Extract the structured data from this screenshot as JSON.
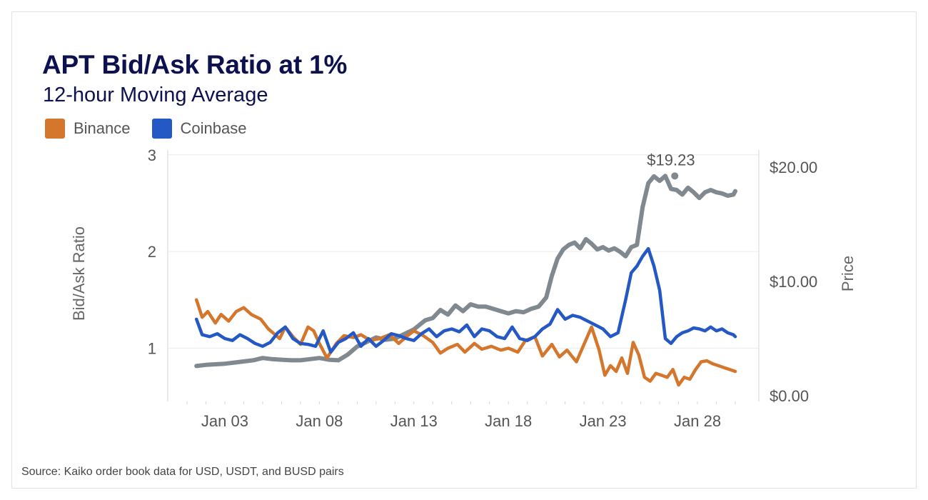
{
  "chart_data": {
    "type": "line",
    "title": "APT Bid/Ask Ratio at 1%",
    "subtitle": "12-hour Moving Average",
    "ylabel": "Bid/Ask Ratio",
    "y2label": "Price",
    "source": "Source: Kaiko order book data for USD, USDT, and BUSD pairs",
    "x_tick_labels": [
      "Jan 03",
      "Jan 08",
      "Jan 13",
      "Jan 18",
      "Jan 23",
      "Jan 28"
    ],
    "x_tick_days": [
      3,
      8,
      13,
      18,
      23,
      28
    ],
    "x_range_days": [
      1.0,
      30.0
    ],
    "ylim": [
      0.45,
      3.05
    ],
    "y_ticks": [
      1,
      2,
      3
    ],
    "y2lim": [
      -0.5,
      21.5
    ],
    "y2_ticks": [
      "$0.00",
      "$10.00",
      "$20.00"
    ],
    "y2_tick_values": [
      0,
      10,
      20
    ],
    "grid": true,
    "legend_position": "top-left",
    "annotation": {
      "text": "$19.23",
      "day": 26.6,
      "value": 19.23
    },
    "series": [
      {
        "name": "Binance",
        "axis": "left",
        "color": "#d4762c",
        "x": [
          1.5,
          1.8,
          2.1,
          2.5,
          2.8,
          3.2,
          3.6,
          4.0,
          4.4,
          4.9,
          5.3,
          5.6,
          5.9,
          6.2,
          6.6,
          7.0,
          7.4,
          7.7,
          8.0,
          8.4,
          8.9,
          9.3,
          9.8,
          10.2,
          10.7,
          11.2,
          11.7,
          12.2,
          12.6,
          13.0,
          13.5,
          14.0,
          14.4,
          14.8,
          15.3,
          15.7,
          16.2,
          16.6,
          17.1,
          17.6,
          18.0,
          18.5,
          18.9,
          19.4,
          19.8,
          20.3,
          20.7,
          21.1,
          21.6,
          22.0,
          22.4,
          22.8,
          23.1,
          23.4,
          23.7,
          24.0,
          24.3,
          24.6,
          24.9,
          25.2,
          25.5,
          25.8,
          26.1,
          26.4,
          26.7,
          27.0,
          27.3,
          27.6,
          27.9,
          28.2,
          28.5,
          28.8,
          29.1,
          29.4,
          29.7,
          30.0
        ],
        "y": [
          1.5,
          1.32,
          1.38,
          1.26,
          1.35,
          1.28,
          1.38,
          1.42,
          1.35,
          1.3,
          1.2,
          1.15,
          1.1,
          1.22,
          1.12,
          1.04,
          1.22,
          1.18,
          1.05,
          0.9,
          1.05,
          1.13,
          1.11,
          1.14,
          1.08,
          1.1,
          1.14,
          1.05,
          1.12,
          1.18,
          1.13,
          1.06,
          0.95,
          1.0,
          1.04,
          0.96,
          1.05,
          0.99,
          1.02,
          0.98,
          1.0,
          0.96,
          1.08,
          1.12,
          0.92,
          1.04,
          0.91,
          0.98,
          0.86,
          1.04,
          1.22,
          0.98,
          0.72,
          0.82,
          0.76,
          0.9,
          0.74,
          1.06,
          0.93,
          0.7,
          0.66,
          0.74,
          0.72,
          0.7,
          0.78,
          0.62,
          0.7,
          0.68,
          0.78,
          0.86,
          0.87,
          0.84,
          0.82,
          0.8,
          0.78,
          0.76
        ]
      },
      {
        "name": "Coinbase",
        "axis": "left",
        "color": "#2458c4",
        "x": [
          1.5,
          1.8,
          2.2,
          2.6,
          3.0,
          3.4,
          3.8,
          4.2,
          4.6,
          5.0,
          5.4,
          5.8,
          6.2,
          6.6,
          7.0,
          7.4,
          7.8,
          8.2,
          8.6,
          9.0,
          9.4,
          9.8,
          10.2,
          10.6,
          11.0,
          11.4,
          11.8,
          12.2,
          12.6,
          13.0,
          13.4,
          13.8,
          14.2,
          14.6,
          15.0,
          15.4,
          15.8,
          16.2,
          16.6,
          17.0,
          17.4,
          17.8,
          18.2,
          18.6,
          19.0,
          19.4,
          19.8,
          20.2,
          20.6,
          21.0,
          21.4,
          21.8,
          22.2,
          22.6,
          23.0,
          23.4,
          23.8,
          24.2,
          24.5,
          24.8,
          25.1,
          25.4,
          25.7,
          26.0,
          26.3,
          26.6,
          26.9,
          27.2,
          27.5,
          27.8,
          28.1,
          28.4,
          28.7,
          29.0,
          29.3,
          29.6,
          29.9,
          30.0
        ],
        "y": [
          1.3,
          1.14,
          1.12,
          1.15,
          1.1,
          1.08,
          1.14,
          1.1,
          1.05,
          1.02,
          1.06,
          1.16,
          1.22,
          1.1,
          1.05,
          1.04,
          1.02,
          1.18,
          0.96,
          1.06,
          1.1,
          1.16,
          1.02,
          1.1,
          1.02,
          1.08,
          1.15,
          1.13,
          1.1,
          1.08,
          1.15,
          1.2,
          1.12,
          1.18,
          1.2,
          1.17,
          1.24,
          1.12,
          1.2,
          1.18,
          1.12,
          1.1,
          1.22,
          1.1,
          1.08,
          1.12,
          1.2,
          1.25,
          1.4,
          1.3,
          1.34,
          1.32,
          1.28,
          1.24,
          1.2,
          1.12,
          1.16,
          1.5,
          1.78,
          1.85,
          1.95,
          2.03,
          1.85,
          1.6,
          1.1,
          1.05,
          1.12,
          1.16,
          1.18,
          1.21,
          1.2,
          1.18,
          1.22,
          1.18,
          1.2,
          1.16,
          1.14,
          1.12
        ]
      },
      {
        "name": "Price",
        "axis": "right",
        "color": "#808890",
        "x": [
          1.5,
          2.0,
          2.5,
          3.0,
          3.5,
          4.0,
          4.5,
          5.0,
          5.5,
          6.0,
          6.5,
          7.0,
          7.5,
          8.0,
          8.5,
          9.0,
          9.5,
          10.0,
          10.5,
          11.0,
          11.5,
          12.0,
          12.5,
          13.0,
          13.3,
          13.6,
          14.0,
          14.4,
          14.8,
          15.2,
          15.6,
          16.0,
          16.4,
          16.8,
          17.2,
          17.6,
          18.0,
          18.4,
          18.8,
          19.2,
          19.6,
          20.0,
          20.3,
          20.6,
          20.9,
          21.2,
          21.5,
          21.8,
          22.1,
          22.4,
          22.7,
          23.0,
          23.3,
          23.6,
          23.9,
          24.2,
          24.5,
          24.8,
          25.1,
          25.4,
          25.7,
          26.0,
          26.3,
          26.6,
          26.9,
          27.2,
          27.5,
          27.8,
          28.1,
          28.4,
          28.7,
          29.0,
          29.3,
          29.6,
          29.9,
          30.0
        ],
        "y": [
          2.6,
          2.7,
          2.75,
          2.8,
          2.9,
          3.0,
          3.1,
          3.3,
          3.2,
          3.15,
          3.1,
          3.1,
          3.2,
          3.3,
          3.15,
          3.1,
          3.6,
          4.3,
          4.7,
          5.1,
          4.9,
          5.0,
          5.4,
          5.8,
          6.2,
          6.6,
          6.8,
          7.5,
          7.1,
          7.9,
          7.4,
          8.0,
          7.8,
          7.8,
          7.6,
          7.4,
          7.2,
          7.4,
          7.3,
          7.6,
          7.8,
          8.6,
          10.5,
          12.0,
          12.8,
          13.2,
          13.4,
          12.9,
          13.7,
          13.3,
          12.8,
          13.0,
          12.7,
          12.9,
          12.6,
          12.2,
          13.0,
          13.2,
          16.5,
          18.6,
          19.2,
          18.8,
          19.23,
          18.1,
          18.0,
          17.6,
          18.2,
          17.8,
          17.3,
          17.8,
          18.0,
          17.8,
          17.7,
          17.5,
          17.6,
          17.9
        ]
      }
    ]
  }
}
